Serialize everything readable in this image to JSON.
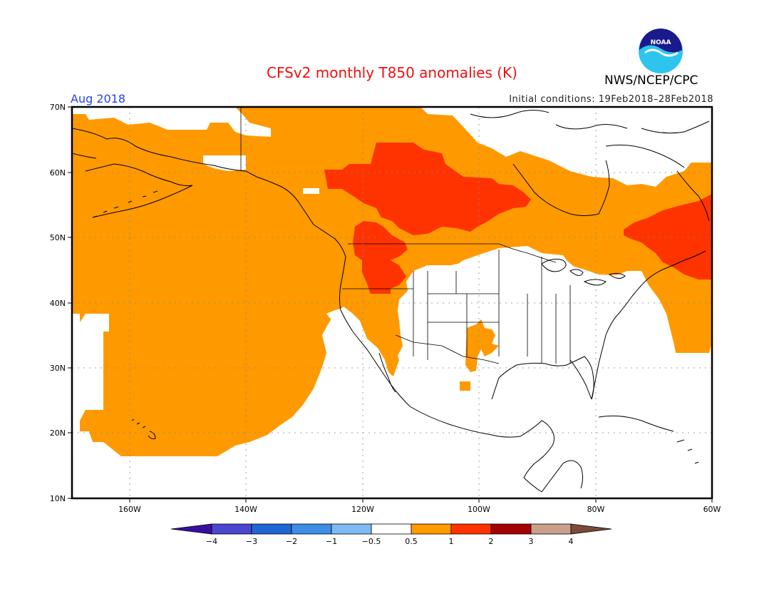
{
  "title": "CFSv2 monthly T850 anomalies (K)",
  "period": "Aug 2018",
  "initial_conditions": "Initial conditions: 19Feb2018–28Feb2018",
  "agency": "NWS/NCEP/CPC",
  "logo_text": "NOAA",
  "colors": {
    "title": "#ee1111",
    "period": "#2244ee",
    "anom_0_5_1": "#ff9900",
    "anom_1_2": "#ff3300",
    "anom_2_3": "#a50000",
    "anom_3_4": "#c8a08c",
    "anom_gt4": "#7a4a3a",
    "neg_lt4": "#3a0fa0",
    "neg_4_3": "#4a46d0",
    "neg_3_2": "#1f66d6",
    "neg_2_1": "#3d8ee6",
    "neg_1_0_5": "#7dbbf5",
    "neutral": "#ffffff"
  },
  "axes": {
    "lat_labels": [
      "70N",
      "60N",
      "50N",
      "40N",
      "30N",
      "20N",
      "10N"
    ],
    "lon_labels": [
      "160W",
      "140W",
      "120W",
      "100W",
      "80W",
      "60W"
    ]
  },
  "colorbar": {
    "labels": [
      "−4",
      "−3",
      "−2",
      "−1",
      "−0.5",
      "0.5",
      "1",
      "2",
      "3",
      "4"
    ]
  }
}
